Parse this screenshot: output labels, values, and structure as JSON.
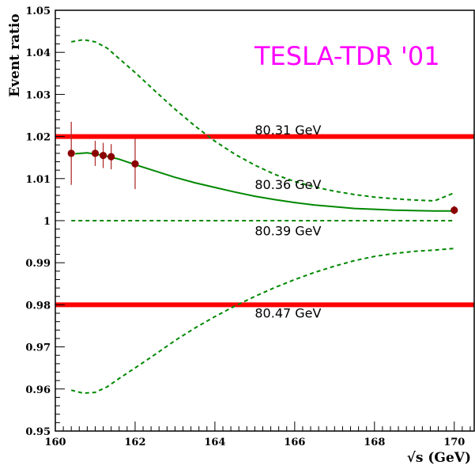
{
  "chart_data": {
    "type": "line",
    "title": "",
    "xlabel": "√s (GeV)",
    "ylabel": "Event ratio",
    "watermark": "TESLA-TDR '01",
    "xlim": [
      160,
      170.5
    ],
    "ylim": [
      0.95,
      1.05
    ],
    "x_ticks": [
      160,
      162,
      164,
      166,
      168,
      170
    ],
    "x_tick_labels": [
      "160",
      "162",
      "164",
      "166",
      "168",
      "170"
    ],
    "y_ticks": [
      0.95,
      0.96,
      0.97,
      0.98,
      0.99,
      1.0,
      1.01,
      1.02,
      1.03,
      1.04,
      1.05
    ],
    "y_tick_labels": [
      "0.95",
      "0.96",
      "0.97",
      "0.98",
      "0.99",
      "1",
      "1.01",
      "1.02",
      "1.03",
      "1.04",
      "1.05"
    ],
    "colors": {
      "red": "#ff0000",
      "green": "#008800",
      "marker": "#8b0000",
      "error": "#b03030",
      "watermark": "#ff00ff"
    },
    "series": [
      {
        "name": "80.31 GeV",
        "style": "solid-red",
        "x": [
          160.0,
          170.5
        ],
        "y": [
          1.02,
          1.02
        ]
      },
      {
        "name": "80.36 GeV",
        "style": "solid-green",
        "x": [
          160.5,
          160.8,
          161.2,
          161.6,
          162.0,
          162.5,
          163.0,
          163.5,
          164.0,
          164.5,
          165.0,
          165.5,
          166.0,
          166.5,
          167.0,
          167.5,
          168.0,
          168.5,
          169.0,
          169.5,
          170.0
        ],
        "y": [
          1.0159,
          1.0161,
          1.0155,
          1.0146,
          1.0133,
          1.0118,
          1.0103,
          1.009,
          1.0079,
          1.0068,
          1.0058,
          1.005,
          1.0043,
          1.0037,
          1.0033,
          1.0029,
          1.0027,
          1.0025,
          1.0024,
          1.0023,
          1.0023
        ]
      },
      {
        "name": "80.39 GeV",
        "style": "dashed-green",
        "x": [
          160.4,
          170.0
        ],
        "y": [
          1.0,
          1.0
        ]
      },
      {
        "name": "80.47 GeV",
        "style": "solid-red",
        "x": [
          160.0,
          170.5
        ],
        "y": [
          0.98,
          0.98
        ]
      },
      {
        "name": "upper band",
        "style": "dashed-green",
        "x": [
          160.4,
          160.7,
          161.0,
          161.3,
          161.6,
          162.0,
          162.5,
          163.0,
          163.5,
          164.0,
          164.5,
          165.0,
          165.5,
          166.0,
          166.5,
          167.0,
          167.5,
          168.0,
          168.5,
          169.0,
          169.5,
          170.0
        ],
        "y": [
          1.0425,
          1.043,
          1.0425,
          1.041,
          1.0385,
          1.0352,
          1.0308,
          1.0265,
          1.0225,
          1.0189,
          1.0158,
          1.0132,
          1.011,
          1.0093,
          1.008,
          1.007,
          1.0062,
          1.0056,
          1.0052,
          1.0049,
          1.0047,
          1.0066
        ]
      },
      {
        "name": "lower band",
        "style": "dashed-green",
        "x": [
          160.4,
          160.7,
          161.0,
          161.3,
          161.6,
          162.0,
          162.5,
          163.0,
          163.5,
          164.0,
          164.5,
          165.0,
          165.5,
          166.0,
          166.5,
          167.0,
          167.5,
          168.0,
          168.5,
          169.0,
          169.5,
          170.0
        ],
        "y": [
          0.9597,
          0.959,
          0.9592,
          0.9605,
          0.9625,
          0.965,
          0.9682,
          0.9715,
          0.9745,
          0.9772,
          0.9797,
          0.982,
          0.9841,
          0.986,
          0.9877,
          0.9892,
          0.9905,
          0.9915,
          0.9922,
          0.9927,
          0.993,
          0.9934
        ]
      }
    ],
    "points": {
      "x": [
        160.4,
        161.0,
        161.2,
        161.4,
        162.0,
        170.0
      ],
      "y": [
        1.016,
        1.016,
        1.0155,
        1.0152,
        1.0135,
        1.0025
      ],
      "err": [
        0.0075,
        0.003,
        0.003,
        0.003,
        0.006,
        0.001
      ]
    },
    "annotations": [
      {
        "text": "80.31 GeV",
        "x": 165.0,
        "y": 1.0205
      },
      {
        "text": "80.36 GeV",
        "x": 165.0,
        "y": 1.0075
      },
      {
        "text": "80.39 GeV",
        "x": 165.0,
        "y": 0.9965
      },
      {
        "text": "80.47 GeV",
        "x": 165.0,
        "y": 0.977
      }
    ]
  }
}
